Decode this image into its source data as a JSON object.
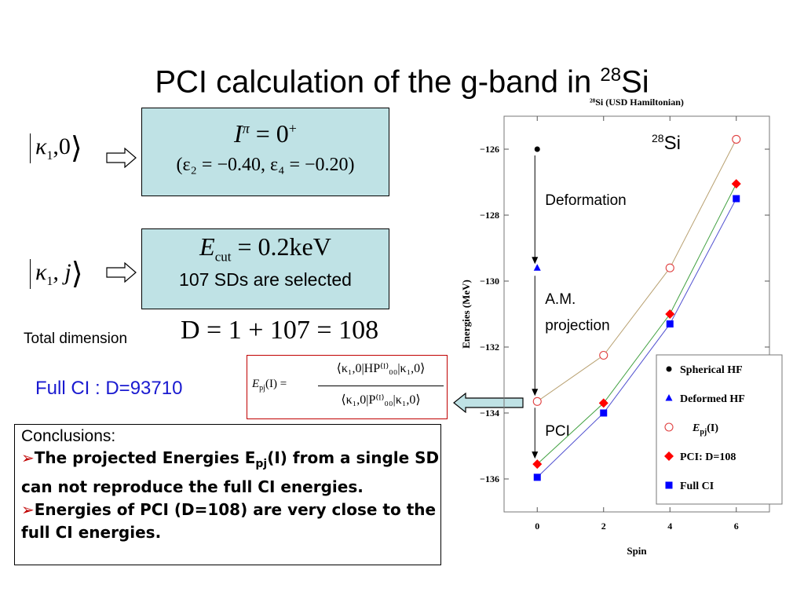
{
  "title": {
    "text": "PCI calculation of the g-band in ",
    "sup": "28",
    "tail": "Si"
  },
  "left": {
    "ket1": {
      "kappa": "κ",
      "sub": "1",
      "rest": ",0"
    },
    "box1": {
      "line1_lhs": "I",
      "line1_sup": "π",
      "line1_rhs": " = 0",
      "line1_rhs_sup": "+",
      "line2": "(ε₂ = −0.40, ε₄ = −0.20)"
    },
    "ket2": {
      "kappa": "κ",
      "sub": "1",
      "rest": ", j"
    },
    "box2": {
      "line1_lhs": "E",
      "line1_sub": "cut",
      "line1_rhs": " = 0.2keV",
      "line2": "107 SDs are selected"
    },
    "total_dimension_label": "Total dimension",
    "total_dimension_eq": "D = 1 + 107 = 108",
    "full_ci_label": "Full CI : D=93710",
    "formula": {
      "lhs": "E",
      "lhs_sub": "pj",
      "lhs_arg": "(I) =",
      "num": "⟨κ₁,0|HP⁽ᴵ⁾₀₀|κ₁,0⟩",
      "den": "⟨κ₁,0|P⁽ᴵ⁾₀₀|κ₁,0⟩"
    }
  },
  "conclusions": {
    "heading": "Conclusions:",
    "items": [
      {
        "bullet": "➢",
        "text_a": "The projected Energies E",
        "sub": "pj",
        "text_b": "(I) from a single SD can  not reproduce the full CI energies."
      },
      {
        "bullet": "➢",
        "text_a": "Energies of PCI (D=108) are very close to the full  CI energies.",
        "sub": "",
        "text_b": ""
      }
    ]
  },
  "chart_data": {
    "type": "scatter",
    "title": "²⁸Si (USD Hamiltonian)",
    "xlabel": "Spin",
    "ylabel": "Energies (MeV)",
    "xlim": [
      -1,
      7
    ],
    "ylim": [
      -137,
      -125
    ],
    "x_ticks": [
      0,
      2,
      4,
      6
    ],
    "y_ticks": [
      -126,
      -128,
      -130,
      -132,
      -134,
      -136
    ],
    "inset_label": {
      "sup": "28",
      "text": "Si"
    },
    "annotations": [
      "Deformation",
      "A.M. projection",
      "PCI"
    ],
    "legend_position": "bottom-right",
    "series": [
      {
        "name": "Spherical HF",
        "marker": "circle-filled",
        "color": "#000000",
        "x": [
          0
        ],
        "y": [
          -126.0
        ],
        "line": false
      },
      {
        "name": "Deformed HF",
        "marker": "triangle",
        "color": "#0000ff",
        "x": [
          0
        ],
        "y": [
          -129.6
        ],
        "line": false
      },
      {
        "name": "Epj(I)",
        "marker": "circle-open",
        "color": "#e04040",
        "line_color": "#b8a070",
        "x": [
          0,
          2,
          4,
          6
        ],
        "y": [
          -133.65,
          -132.25,
          -129.6,
          -125.7
        ],
        "line": true
      },
      {
        "name": "PCI: D=108",
        "marker": "diamond",
        "color": "#ff0000",
        "line_color": "#40a040",
        "x": [
          0,
          2,
          4,
          6
        ],
        "y": [
          -135.55,
          -133.7,
          -131.0,
          -127.05
        ],
        "line": true
      },
      {
        "name": "Full CI",
        "marker": "square",
        "color": "#0000ff",
        "line_color": "#5050d0",
        "x": [
          0,
          2,
          4,
          6
        ],
        "y": [
          -135.95,
          -134.0,
          -131.3,
          -127.5
        ],
        "line": true
      }
    ]
  }
}
